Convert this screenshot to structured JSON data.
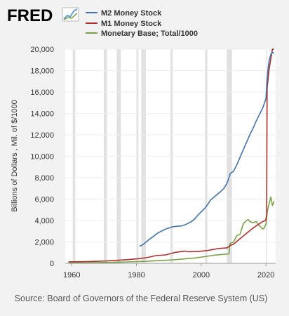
{
  "logo": {
    "text": "FRED",
    "icon": "fred-chart-logo-icon"
  },
  "legend": [
    {
      "label": "M2 Money Stock",
      "color": "#4472a8"
    },
    {
      "label": "M1 Money Stock",
      "color": "#a9322f"
    },
    {
      "label": "Monetary Base; Total/1000",
      "color": "#7ba24a"
    }
  ],
  "source": "Source: Board of Governors of the Federal Reserve System (US)",
  "chart_data": {
    "type": "line",
    "title": "",
    "xlabel": "",
    "ylabel": "Billions of Dollars , Mil. of $/1000",
    "xlim": [
      1958,
      2023
    ],
    "ylim": [
      0,
      20000
    ],
    "xticks": [
      1960,
      1980,
      2000,
      2020
    ],
    "xtick_labels": [
      "1960",
      "1980",
      "2000",
      "2020"
    ],
    "yticks": [
      0,
      2000,
      4000,
      6000,
      8000,
      10000,
      12000,
      14000,
      16000,
      18000,
      20000
    ],
    "ytick_labels": [
      "0",
      "2,000",
      "4,000",
      "6,000",
      "8,000",
      "10,000",
      "12,000",
      "14,000",
      "16,000",
      "18,000",
      "20,000"
    ],
    "grid": true,
    "recessions": [
      [
        1960.3,
        1961.1
      ],
      [
        1969.9,
        1970.9
      ],
      [
        1973.9,
        1975.2
      ],
      [
        1980.0,
        1980.6
      ],
      [
        1981.5,
        1982.9
      ],
      [
        1990.5,
        1991.2
      ],
      [
        2001.2,
        2001.9
      ],
      [
        2007.9,
        2009.5
      ],
      [
        2020.1,
        2020.4
      ]
    ],
    "series": [
      {
        "name": "M2 Money Stock",
        "x": [
          1981,
          1982,
          1983,
          1984,
          1985,
          1986,
          1987,
          1988,
          1989,
          1990,
          1991,
          1992,
          1993,
          1994,
          1995,
          1996,
          1997,
          1998,
          1999,
          2000,
          2001,
          2002,
          2003,
          2004,
          2005,
          2006,
          2007,
          2008,
          2009,
          2010,
          2011,
          2012,
          2013,
          2014,
          2015,
          2016,
          2017,
          2018,
          2019,
          2020,
          2020.3,
          2020.6,
          2021,
          2021.5,
          2022,
          2022.5
        ],
        "values": [
          1600,
          1750,
          2000,
          2250,
          2450,
          2700,
          2900,
          3050,
          3200,
          3300,
          3400,
          3450,
          3470,
          3500,
          3600,
          3750,
          3900,
          4150,
          4500,
          4800,
          5100,
          5500,
          5950,
          6200,
          6450,
          6700,
          7000,
          7500,
          8400,
          8600,
          9200,
          9900,
          10600,
          11300,
          12000,
          12600,
          13300,
          13900,
          14500,
          15400,
          17000,
          18000,
          19000,
          19500,
          19700,
          19600
        ]
      },
      {
        "name": "M1 Money Stock",
        "x": [
          1959,
          1962,
          1965,
          1968,
          1971,
          1974,
          1977,
          1980,
          1983,
          1986,
          1989,
          1992,
          1995,
          1996,
          1999,
          2002,
          2005,
          2008,
          2009,
          2010,
          2012,
          2014,
          2016,
          2018,
          2019,
          2019.9,
          2020.2,
          2020.35,
          2020.45,
          2021,
          2022,
          2022.5
        ],
        "values": [
          140,
          150,
          165,
          190,
          230,
          280,
          340,
          410,
          520,
          720,
          790,
          1020,
          1140,
          1080,
          1100,
          1200,
          1370,
          1450,
          1680,
          1800,
          2300,
          2800,
          3300,
          3700,
          3900,
          4000,
          4500,
          16300,
          16600,
          18200,
          20400,
          20200
        ]
      },
      {
        "name": "Monetary Base; Total/1000",
        "x": [
          1959,
          1962,
          1965,
          1968,
          1971,
          1974,
          1977,
          1980,
          1983,
          1986,
          1989,
          1992,
          1995,
          1998,
          2001,
          2004,
          2007,
          2008.6,
          2008.8,
          2009,
          2010,
          2011,
          2012,
          2013,
          2014,
          2014.5,
          2015,
          2016,
          2017,
          2018,
          2019,
          2019.5,
          2020,
          2020.5,
          2021,
          2021.5,
          2022,
          2022.5
        ],
        "values": [
          50,
          55,
          60,
          70,
          85,
          105,
          130,
          160,
          190,
          240,
          280,
          340,
          420,
          500,
          620,
          760,
          840,
          880,
          1700,
          1900,
          2000,
          2600,
          2700,
          3700,
          4000,
          4100,
          3900,
          3800,
          3900,
          3500,
          3200,
          3300,
          3700,
          5000,
          5600,
          6200,
          5400,
          5800
        ]
      }
    ]
  }
}
